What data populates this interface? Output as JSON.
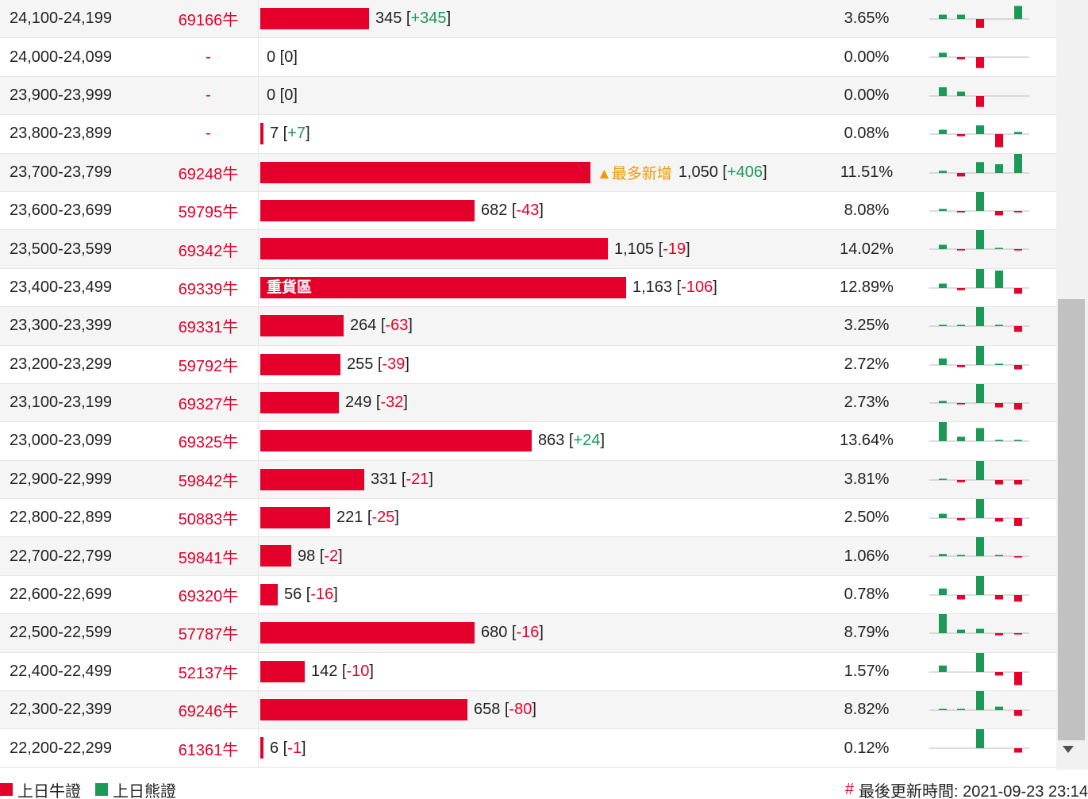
{
  "colors": {
    "bull": "#e4002b",
    "bear": "#1a9a55",
    "hint": "#f39800"
  },
  "scale_max": 1163,
  "rows": [
    {
      "range": "24,100-24,199",
      "code": "69166牛",
      "value": 345,
      "value_text": "345",
      "change": "+345",
      "pct": "3.65%",
      "label": "",
      "hint": "",
      "spark": [
        1,
        1,
        -2,
        0,
        0,
        3
      ]
    },
    {
      "range": "24,000-24,099",
      "code": "-",
      "value": 0,
      "value_text": "0",
      "change": "0",
      "pct": "0.00%",
      "label": "",
      "hint": "",
      "spark": [
        1,
        -0.5,
        -2.5,
        0,
        0,
        0
      ]
    },
    {
      "range": "23,900-23,999",
      "code": "-",
      "value": 0,
      "value_text": "0",
      "change": "0",
      "pct": "0.00%",
      "label": "",
      "hint": "",
      "spark": [
        2,
        1,
        -2.5,
        0,
        0,
        0
      ]
    },
    {
      "range": "23,800-23,899",
      "code": "-",
      "value": 7,
      "value_text": "7",
      "change": "+7",
      "pct": "0.08%",
      "label": "",
      "hint": "",
      "spark": [
        1,
        -0.5,
        2,
        -3,
        0,
        0.5
      ]
    },
    {
      "range": "23,700-23,799",
      "code": "69248牛",
      "value": 1050,
      "value_text": "1,050",
      "change": "+406",
      "pct": "11.51%",
      "label": "",
      "hint": "▲最多新增",
      "spark": [
        0.5,
        -0.8,
        2.5,
        2,
        0,
        4.5
      ]
    },
    {
      "range": "23,600-23,699",
      "code": "59795牛",
      "value": 682,
      "value_text": "682",
      "change": "-43",
      "pct": "8.08%",
      "label": "",
      "hint": "",
      "spark": [
        0.5,
        -0.3,
        4.5,
        -1,
        0,
        -0.3
      ]
    },
    {
      "range": "23,500-23,599",
      "code": "69342牛",
      "value": 1105,
      "value_text": "1,105",
      "change": "-19",
      "pct": "14.02%",
      "label": "",
      "hint": "",
      "spark": [
        1,
        -0.3,
        4.5,
        0.3,
        0,
        -0.3
      ]
    },
    {
      "range": "23,400-23,499",
      "code": "69339牛",
      "value": 1163,
      "value_text": "1,163",
      "change": "-106",
      "pct": "12.89%",
      "label": "重貨區",
      "hint": "",
      "spark": [
        1,
        -0.5,
        4.5,
        4,
        0,
        -1.3
      ]
    },
    {
      "range": "23,300-23,399",
      "code": "69331牛",
      "value": 264,
      "value_text": "264",
      "change": "-63",
      "pct": "3.25%",
      "label": "",
      "hint": "",
      "spark": [
        0.3,
        0.3,
        4.5,
        0.3,
        0,
        -1.3
      ]
    },
    {
      "range": "23,200-23,299",
      "code": "59792牛",
      "value": 255,
      "value_text": "255",
      "change": "-39",
      "pct": "2.72%",
      "label": "",
      "hint": "",
      "spark": [
        1.5,
        -0.5,
        4.5,
        0.3,
        0,
        -1
      ]
    },
    {
      "range": "23,100-23,199",
      "code": "69327牛",
      "value": 249,
      "value_text": "249",
      "change": "-32",
      "pct": "2.73%",
      "label": "",
      "hint": "",
      "spark": [
        0.5,
        -0.3,
        4.5,
        -1,
        0,
        -1.5
      ]
    },
    {
      "range": "23,000-23,099",
      "code": "69325牛",
      "value": 863,
      "value_text": "863",
      "change": "+24",
      "pct": "13.64%",
      "label": "",
      "hint": "",
      "spark": [
        4.5,
        1,
        3,
        0.3,
        0,
        0.3
      ]
    },
    {
      "range": "22,900-22,999",
      "code": "59842牛",
      "value": 331,
      "value_text": "331",
      "change": "-21",
      "pct": "3.81%",
      "label": "",
      "hint": "",
      "spark": [
        0.3,
        -0.5,
        4.5,
        -1,
        0,
        -1
      ]
    },
    {
      "range": "22,800-22,899",
      "code": "50883牛",
      "value": 221,
      "value_text": "221",
      "change": "-25",
      "pct": "2.50%",
      "label": "",
      "hint": "",
      "spark": [
        1,
        -0.5,
        4.5,
        -0.8,
        0,
        -1.8
      ]
    },
    {
      "range": "22,700-22,799",
      "code": "59841牛",
      "value": 98,
      "value_text": "98",
      "change": "-2",
      "pct": "1.06%",
      "label": "",
      "hint": "",
      "spark": [
        0.5,
        0.3,
        4.5,
        0.3,
        0,
        -0.3
      ]
    },
    {
      "range": "22,600-22,699",
      "code": "69320牛",
      "value": 56,
      "value_text": "56",
      "change": "-16",
      "pct": "0.78%",
      "label": "",
      "hint": "",
      "spark": [
        1.5,
        -1,
        4.5,
        -1,
        0,
        -1.5
      ]
    },
    {
      "range": "22,500-22,599",
      "code": "57787牛",
      "value": 680,
      "value_text": "680",
      "change": "-16",
      "pct": "8.79%",
      "label": "",
      "hint": "",
      "spark": [
        4.5,
        0.8,
        1,
        -0.5,
        0,
        -0.3
      ]
    },
    {
      "range": "22,400-22,499",
      "code": "52137牛",
      "value": 142,
      "value_text": "142",
      "change": "-10",
      "pct": "1.57%",
      "label": "",
      "hint": "",
      "spark": [
        1.5,
        0,
        4.5,
        -0.8,
        0,
        -3
      ]
    },
    {
      "range": "22,300-22,399",
      "code": "69246牛",
      "value": 658,
      "value_text": "658",
      "change": "-80",
      "pct": "8.82%",
      "label": "",
      "hint": "",
      "spark": [
        0.3,
        0.3,
        4.5,
        0.8,
        0,
        -1.3
      ]
    },
    {
      "range": "22,200-22,299",
      "code": "61361牛",
      "value": 6,
      "value_text": "6",
      "change": "-1",
      "pct": "0.12%",
      "label": "",
      "hint": "",
      "spark": [
        0,
        0,
        4.5,
        0,
        0,
        -1
      ]
    }
  ],
  "legend": {
    "bull_label": "上日牛證",
    "bear_label": "上日熊證"
  },
  "footer": {
    "hash": "#",
    "updated_label": "最後更新時間: 2021-09-23 23:14"
  }
}
